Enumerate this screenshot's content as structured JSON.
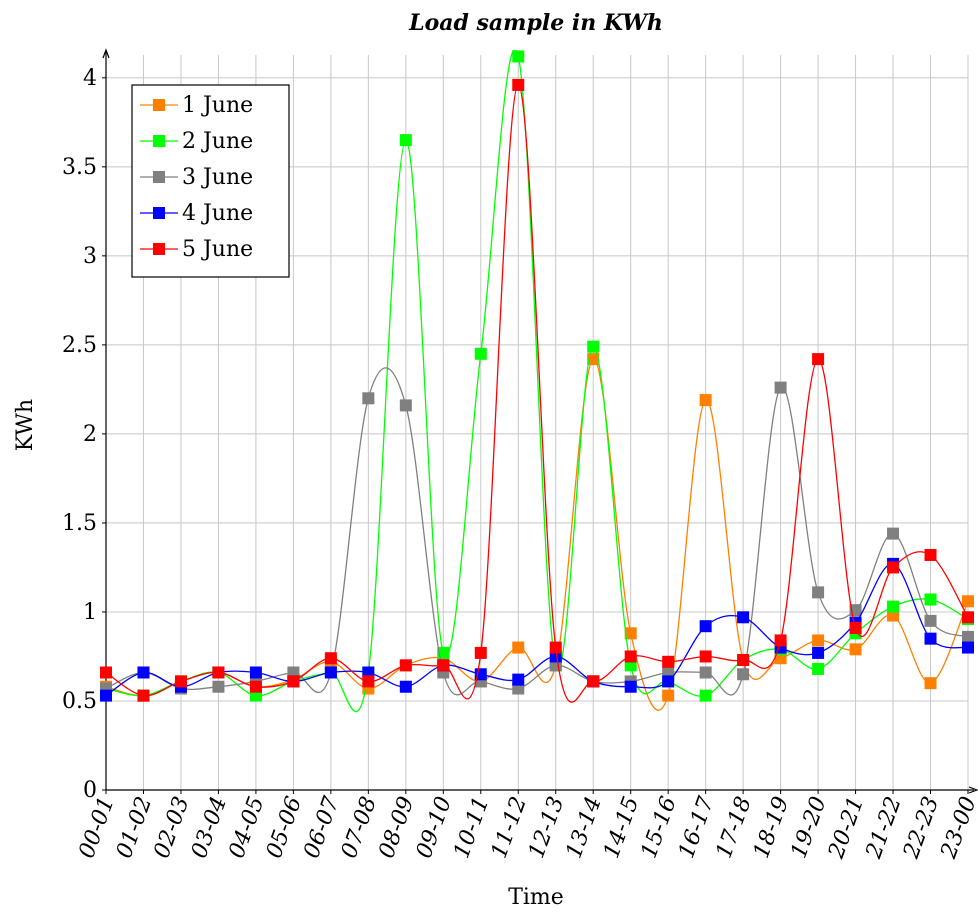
{
  "chart_data": {
    "type": "line",
    "title": "Load sample in KWh",
    "xlabel": "Time",
    "ylabel": "KWh",
    "ylim": [
      0,
      4.1
    ],
    "yticks": [
      "0",
      "0.5",
      "1",
      "1.5",
      "2",
      "2.5",
      "3",
      "3.5",
      "4"
    ],
    "categories": [
      "00-01",
      "01-02",
      "02-03",
      "03-04",
      "04-05",
      "05-06",
      "06-07",
      "07-08",
      "08-09",
      "09-10",
      "10-11",
      "11-12",
      "12-13",
      "13-14",
      "14-15",
      "15-16",
      "16-17",
      "17-18",
      "18-19",
      "19-20",
      "20-21",
      "21-22",
      "22-23",
      "23-00"
    ],
    "grid": true,
    "legend_position": "top-left",
    "series": [
      {
        "name": "1 June",
        "color": "#ff8000",
        "values": [
          0.58,
          0.53,
          0.61,
          0.66,
          0.58,
          0.62,
          0.72,
          0.57,
          0.7,
          0.74,
          0.61,
          0.8,
          0.7,
          2.42,
          0.88,
          0.53,
          2.19,
          0.73,
          0.74,
          0.84,
          0.79,
          0.98,
          0.6,
          1.06
        ]
      },
      {
        "name": "2 June",
        "color": "#00ff00",
        "values": [
          0.57,
          0.53,
          0.61,
          0.66,
          0.53,
          0.61,
          0.66,
          0.66,
          3.65,
          0.77,
          2.45,
          4.12,
          0.7,
          2.49,
          0.7,
          0.61,
          0.53,
          0.73,
          0.79,
          0.68,
          0.88,
          1.03,
          1.07,
          0.96
        ]
      },
      {
        "name": "3 June",
        "color": "#808080",
        "values": [
          0.57,
          0.66,
          0.57,
          0.58,
          0.61,
          0.66,
          0.66,
          2.2,
          2.16,
          0.66,
          0.61,
          0.57,
          0.7,
          0.61,
          0.61,
          0.66,
          0.66,
          0.65,
          2.26,
          1.11,
          1.01,
          1.44,
          0.95,
          0.86
        ]
      },
      {
        "name": "4 June",
        "color": "#0000ff",
        "values": [
          0.53,
          0.66,
          0.58,
          0.66,
          0.66,
          0.61,
          0.66,
          0.66,
          0.58,
          0.7,
          0.65,
          0.62,
          0.75,
          0.61,
          0.58,
          0.61,
          0.92,
          0.97,
          0.8,
          0.77,
          0.94,
          1.27,
          0.85,
          0.8
        ]
      },
      {
        "name": "5 June",
        "color": "#ff0000",
        "values": [
          0.66,
          0.53,
          0.61,
          0.66,
          0.58,
          0.61,
          0.74,
          0.61,
          0.7,
          0.7,
          0.77,
          3.96,
          0.8,
          0.61,
          0.75,
          0.72,
          0.75,
          0.73,
          0.84,
          2.42,
          0.91,
          1.25,
          1.32,
          0.97
        ]
      }
    ]
  }
}
